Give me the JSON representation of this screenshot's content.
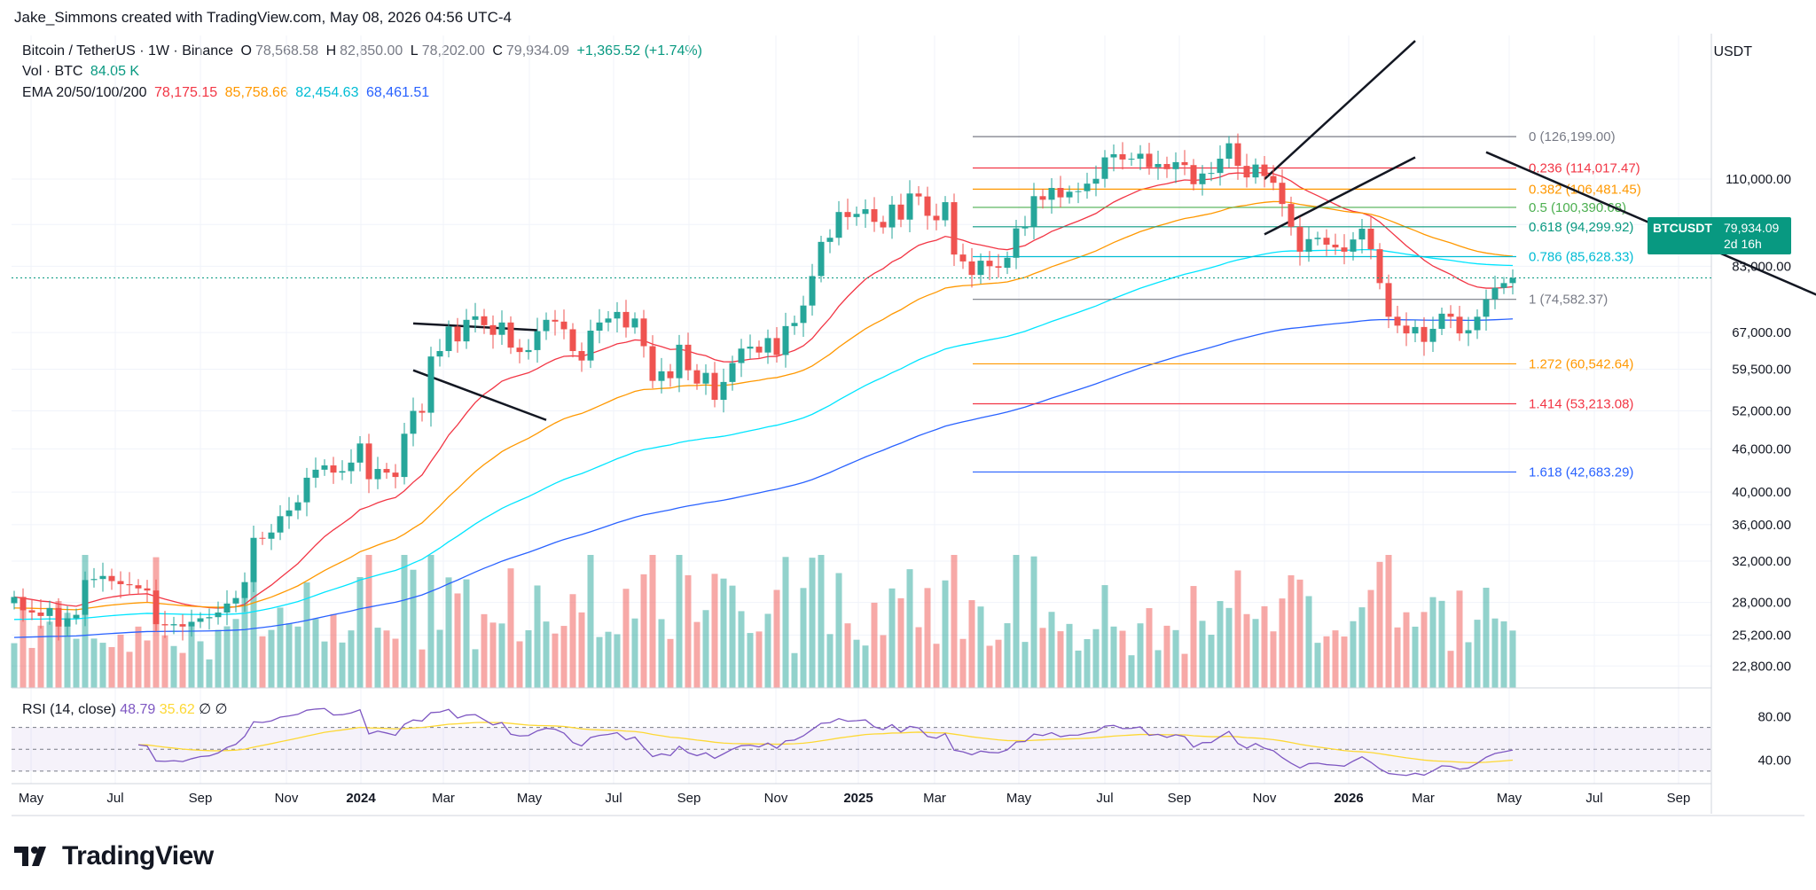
{
  "credit": "Jake_Simmons created with TradingView.com, May 08, 2026 04:56 UTC-4",
  "header": {
    "symbol_line": "Bitcoin / TetherUS · 1W · Binance",
    "open_k": "O",
    "open_v": "78,568.58",
    "high_k": "H",
    "high_v": "82,850.00",
    "low_k": "L",
    "low_v": "78,202.00",
    "close_k": "C",
    "close_v": "79,934.09",
    "change": "+1,365.52 (+1.74%)",
    "vol_label": "Vol · BTC",
    "vol_value": "84.05 K",
    "ema_label": "EMA 20/50/100/200",
    "ema_values": [
      "78,175.15",
      "85,758.66",
      "82,454.63",
      "68,461.51"
    ],
    "ema_colors": [
      "#f23645",
      "#ff9800",
      "#00e5ff",
      "#2962ff"
    ]
  },
  "currency": "USDT",
  "price_label": {
    "symbol": "BTCUSDT",
    "price": "79,934.09",
    "countdown": "2d 16h"
  },
  "rsi": {
    "label": "RSI (14, close)",
    "value": "48.79",
    "ma": "35.62",
    "sym1": "∅",
    "sym2": "∅"
  },
  "brand": "TradingView",
  "chart_data": [
    {
      "type": "candlestick",
      "title": "Bitcoin / TetherUS · 1W · Binance",
      "y_scale": "log",
      "ylim": [
        21000,
        175000
      ],
      "x_ticks": [
        "May",
        "Jul",
        "Sep",
        "Nov",
        "2024",
        "Mar",
        "May",
        "Jul",
        "Sep",
        "Nov",
        "2025",
        "Mar",
        "May",
        "Jul",
        "Sep",
        "Nov",
        "2026",
        "Mar",
        "May",
        "Jul",
        "Sep"
      ],
      "bold_x_ticks": [
        "2024",
        "2025",
        "2026"
      ],
      "y_ticks": [
        "110,000.00",
        "95,000.00",
        "83,000.00",
        "67,000.00",
        "59,500.00",
        "52,000.00",
        "46,000.00",
        "40,000.00",
        "36,000.00",
        "32,000.00",
        "28,000.00",
        "25,200.00",
        "22,800.00"
      ],
      "close_series": [
        28500,
        27300,
        27100,
        26800,
        27500,
        25900,
        26600,
        26900,
        30100,
        30200,
        30500,
        30000,
        29700,
        29600,
        29300,
        29100,
        26100,
        26000,
        26100,
        25900,
        26300,
        26600,
        26700,
        27100,
        27900,
        28400,
        29900,
        34500,
        34400,
        35100,
        37000,
        37700,
        38700,
        41900,
        43000,
        43600,
        42600,
        42800,
        44000,
        46800,
        41700,
        43100,
        42600,
        42000,
        48300,
        52000,
        51700,
        62000,
        63100,
        68300,
        65100,
        69800,
        70600,
        68600,
        66500,
        69200,
        63800,
        62900,
        63300,
        67300,
        69800,
        69400,
        67700,
        63100,
        61200,
        67400,
        69200,
        70100,
        71600,
        68100,
        70100,
        64100,
        57300,
        59100,
        57800,
        64400,
        59300,
        56800,
        58800,
        53900,
        57100,
        60700,
        63600,
        64000,
        62800,
        65800,
        62300,
        68400,
        69100,
        73100,
        80400,
        89800,
        91000,
        98900,
        97300,
        98300,
        99800,
        95800,
        94100,
        101300,
        96500,
        105000,
        104000,
        97700,
        96300,
        102100,
        86200,
        84300,
        80700,
        84500,
        83000,
        82600,
        85300,
        93800,
        94300,
        104100,
        102900,
        106900,
        103700,
        105600,
        105800,
        108400,
        110100,
        118000,
        119200,
        117200,
        117500,
        119400,
        114300,
        115500,
        113600,
        116200,
        115100,
        108200,
        112000,
        112200,
        117500,
        123500,
        114800,
        110600,
        115300,
        111100,
        108700,
        101500,
        94300,
        87000,
        90600,
        91000,
        89000,
        88200,
        87000,
        90500,
        93700,
        87700,
        78600,
        70500,
        68500,
        66800,
        68200,
        65000,
        67800,
        71200,
        70500,
        66800,
        67500,
        70500,
        74600,
        77400,
        78600,
        79934
      ],
      "markers": [
        {
          "label": "0",
          "value": 126199.0,
          "display": "0 (126,199.00)",
          "color": "#787b86"
        },
        {
          "label": "0.236",
          "value": 114017.47,
          "display": "0.236 (114,017.47)",
          "color": "#f23645"
        },
        {
          "label": "0.382",
          "value": 106481.45,
          "display": "0.382 (106,481.45)",
          "color": "#ff9800"
        },
        {
          "label": "0.5",
          "value": 100390.68,
          "display": "0.5 (100,390.68)",
          "color": "#4caf50"
        },
        {
          "label": "0.618",
          "value": 94299.92,
          "display": "0.618 (94,299.92)",
          "color": "#089981"
        },
        {
          "label": "0.786",
          "value": 85628.33,
          "display": "0.786 (85,628.33)",
          "color": "#00bcd4"
        },
        {
          "label": "1",
          "value": 74582.37,
          "display": "1 (74,582.37)",
          "color": "#787b86"
        },
        {
          "label": "1.272",
          "value": 60542.64,
          "display": "1.272 (60,542.64)",
          "color": "#ff9800"
        },
        {
          "label": "1.414",
          "value": 53213.08,
          "display": "1.414 (53,213.08)",
          "color": "#f23645"
        },
        {
          "label": "1.618",
          "value": 42683.29,
          "display": "1.618 (42,683.29)",
          "color": "#2962ff"
        }
      ],
      "ema_series_names": [
        "EMA 20",
        "EMA 50",
        "EMA 100",
        "EMA 200"
      ],
      "volume_series": {
        "name": "Vol · BTC",
        "last": 84.05
      }
    },
    {
      "type": "line",
      "title": "RSI (14, close)",
      "ylim": [
        25,
        90
      ],
      "y_ticks": [
        "80.00",
        "40.00"
      ],
      "bands": [
        30,
        50,
        70
      ],
      "last_rsi": 48.79,
      "last_ma": 35.62
    }
  ]
}
